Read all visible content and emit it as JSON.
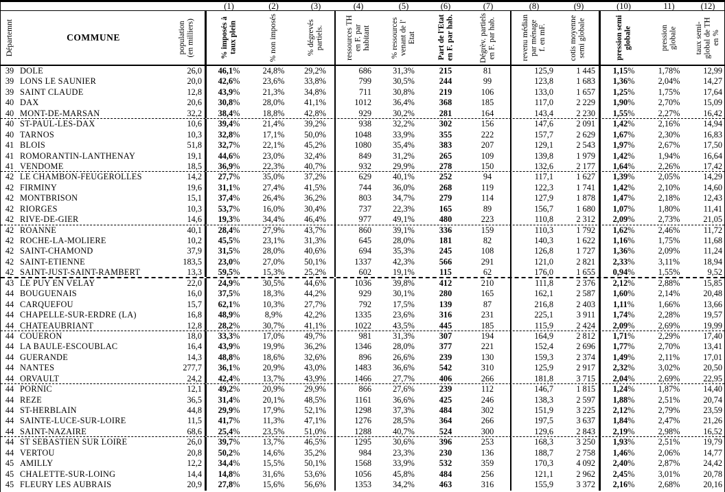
{
  "table": {
    "corner": {
      "dept": "Départemnt",
      "commune": "COMMUNE",
      "pop": "population\n(en milliers)"
    },
    "columns": [
      {
        "num": "(1)",
        "label": "% imposés à\ntaux plein",
        "bold": true
      },
      {
        "num": "(2)",
        "label": "% non imposés",
        "bold": false
      },
      {
        "num": "(3)",
        "label": "% dégrevés\npartiels.",
        "bold": false
      },
      {
        "num": "(4)",
        "label": "ressources TH\nen F. par\nhabitant",
        "bold": false
      },
      {
        "num": "(5)",
        "label": "% ressources\nvenant de l'\nEtat",
        "bold": false
      },
      {
        "num": "(6)",
        "label": "Part de l'Etat\nen F. par hab.",
        "bold": true
      },
      {
        "num": "(7)",
        "label": "Dégrèv. partiels\nen F. par hab.",
        "bold": false
      },
      {
        "num": "(8)",
        "label": "revenu médian\npar ménage\nf. en mF.",
        "bold": false
      },
      {
        "num": "(9)",
        "label": "cotis moyenne\nsemi globale",
        "bold": false
      },
      {
        "num": "(10)",
        "label": "pression semi\nglobale",
        "bold": true
      },
      {
        "num": "11)",
        "label": "pression\nglobale",
        "bold": false
      },
      {
        "num": "(12)",
        "label": "taux semi-\nglobal de TH\nen %",
        "bold": false
      }
    ],
    "rows": [
      {
        "dept": "39",
        "commune": "DOLE",
        "pop": "26,0",
        "c1": "46,1%",
        "c2": "24,8%",
        "c3": "29,2%",
        "c4": "686",
        "c5": "31,3%",
        "c6": "215",
        "c7": "81",
        "c8": "125,9",
        "c9": "1 445",
        "c10": "1,15%",
        "c11": "1,78%",
        "c12": "12,99",
        "sep": ""
      },
      {
        "dept": "39",
        "commune": "LONS LE SAUNIER",
        "pop": "20,0",
        "c1": "42,6%",
        "c2": "23,6%",
        "c3": "33,8%",
        "c4": "799",
        "c5": "30,5%",
        "c6": "244",
        "c7": "99",
        "c8": "123,8",
        "c9": "1 683",
        "c10": "1,36%",
        "c11": "2,04%",
        "c12": "14,27",
        "sep": ""
      },
      {
        "dept": "39",
        "commune": "SAINT CLAUDE",
        "pop": "12,8",
        "c1": "43,9%",
        "c2": "21,3%",
        "c3": "34,8%",
        "c4": "711",
        "c5": "30,8%",
        "c6": "219",
        "c7": "106",
        "c8": "133,0",
        "c9": "1 657",
        "c10": "1,25%",
        "c11": "1,75%",
        "c12": "17,64",
        "sep": ""
      },
      {
        "dept": "40",
        "commune": "DAX",
        "pop": "20,6",
        "c1": "30,8%",
        "c2": "28,0%",
        "c3": "41,1%",
        "c4": "1012",
        "c5": "36,4%",
        "c6": "368",
        "c7": "185",
        "c8": "117,0",
        "c9": "2 229",
        "c10": "1,90%",
        "c11": "2,70%",
        "c12": "15,09",
        "sep": ""
      },
      {
        "dept": "40",
        "commune": "MONT-DE-MARSAN",
        "pop": "32,2",
        "c1": "38,4%",
        "c2": "18,8%",
        "c3": "42,8%",
        "c4": "929",
        "c5": "30,2%",
        "c6": "281",
        "c7": "164",
        "c8": "143,4",
        "c9": "2 230",
        "c10": "1,55%",
        "c11": "2,27%",
        "c12": "16,42",
        "sep": "dashed"
      },
      {
        "dept": "40",
        "commune": "ST-PAUL-LES-DAX",
        "pop": "10,6",
        "c1": "39,4%",
        "c2": "21,4%",
        "c3": "39,2%",
        "c4": "938",
        "c5": "32,2%",
        "c6": "302",
        "c7": "156",
        "c8": "147,6",
        "c9": "2 091",
        "c10": "1,42%",
        "c11": "2,16%",
        "c12": "14,94",
        "sep": ""
      },
      {
        "dept": "40",
        "commune": "TARNOS",
        "pop": "10,3",
        "c1": "32,8%",
        "c2": "17,1%",
        "c3": "50,0%",
        "c4": "1048",
        "c5": "33,9%",
        "c6": "355",
        "c7": "222",
        "c8": "157,7",
        "c9": "2 629",
        "c10": "1,67%",
        "c11": "2,30%",
        "c12": "16,83",
        "sep": ""
      },
      {
        "dept": "41",
        "commune": "BLOIS",
        "pop": "51,8",
        "c1": "32,7%",
        "c2": "22,1%",
        "c3": "45,2%",
        "c4": "1080",
        "c5": "35,4%",
        "c6": "383",
        "c7": "207",
        "c8": "129,1",
        "c9": "2 543",
        "c10": "1,97%",
        "c11": "2,67%",
        "c12": "17,50",
        "sep": ""
      },
      {
        "dept": "41",
        "commune": "ROMORANTIN-LANTHENAY",
        "pop": "19,1",
        "c1": "44,6%",
        "c2": "23,0%",
        "c3": "32,4%",
        "c4": "849",
        "c5": "31,2%",
        "c6": "265",
        "c7": "109",
        "c8": "139,8",
        "c9": "1 979",
        "c10": "1,42%",
        "c11": "1,94%",
        "c12": "16,64",
        "sep": ""
      },
      {
        "dept": "41",
        "commune": "VENDOME",
        "pop": "18,5",
        "c1": "36,9%",
        "c2": "22,3%",
        "c3": "40,7%",
        "c4": "932",
        "c5": "29,9%",
        "c6": "278",
        "c7": "150",
        "c8": "132,6",
        "c9": "2 177",
        "c10": "1,64%",
        "c11": "2,26%",
        "c12": "17,42",
        "sep": "dashed"
      },
      {
        "dept": "42",
        "commune": "LE CHAMBON-FEUGEROLLES",
        "pop": "14,2",
        "c1": "27,7%",
        "c2": "35,0%",
        "c3": "37,2%",
        "c4": "629",
        "c5": "40,1%",
        "c6": "252",
        "c7": "94",
        "c8": "117,1",
        "c9": "1 627",
        "c10": "1,39%",
        "c11": "2,05%",
        "c12": "14,29",
        "sep": ""
      },
      {
        "dept": "42",
        "commune": "FIRMINY",
        "pop": "19,6",
        "c1": "31,1%",
        "c2": "27,4%",
        "c3": "41,5%",
        "c4": "744",
        "c5": "36,0%",
        "c6": "268",
        "c7": "119",
        "c8": "122,3",
        "c9": "1 741",
        "c10": "1,42%",
        "c11": "2,10%",
        "c12": "14,60",
        "sep": ""
      },
      {
        "dept": "42",
        "commune": "MONTBRISON",
        "pop": "15,1",
        "c1": "37,4%",
        "c2": "26,4%",
        "c3": "36,2%",
        "c4": "803",
        "c5": "34,7%",
        "c6": "279",
        "c7": "114",
        "c8": "127,9",
        "c9": "1 878",
        "c10": "1,47%",
        "c11": "2,18%",
        "c12": "12,43",
        "sep": ""
      },
      {
        "dept": "42",
        "commune": "RIORGES",
        "pop": "10,3",
        "c1": "53,7%",
        "c2": "16,0%",
        "c3": "30,4%",
        "c4": "737",
        "c5": "22,3%",
        "c6": "165",
        "c7": "89",
        "c8": "156,7",
        "c9": "1 680",
        "c10": "1,07%",
        "c11": "1,80%",
        "c12": "11,41",
        "sep": ""
      },
      {
        "dept": "42",
        "commune": "RIVE-DE-GIER",
        "pop": "14,6",
        "c1": "19,3%",
        "c2": "34,4%",
        "c3": "46,4%",
        "c4": "977",
        "c5": "49,1%",
        "c6": "480",
        "c7": "223",
        "c8": "110,8",
        "c9": "2 312",
        "c10": "2,09%",
        "c11": "2,73%",
        "c12": "21,05",
        "sep": "dashed"
      },
      {
        "dept": "42",
        "commune": "ROANNE",
        "pop": "40,1",
        "c1": "28,4%",
        "c2": "27,9%",
        "c3": "43,7%",
        "c4": "860",
        "c5": "39,1%",
        "c6": "336",
        "c7": "159",
        "c8": "110,3",
        "c9": "1 792",
        "c10": "1,62%",
        "c11": "2,46%",
        "c12": "11,72",
        "sep": ""
      },
      {
        "dept": "42",
        "commune": "ROCHE-LA-MOLIERE",
        "pop": "10,2",
        "c1": "45,5%",
        "c2": "23,1%",
        "c3": "31,3%",
        "c4": "645",
        "c5": "28,0%",
        "c6": "181",
        "c7": "82",
        "c8": "140,3",
        "c9": "1 622",
        "c10": "1,16%",
        "c11": "1,75%",
        "c12": "11,68",
        "sep": ""
      },
      {
        "dept": "42",
        "commune": "SAINT-CHAMOND",
        "pop": "37,9",
        "c1": "31,5%",
        "c2": "28,0%",
        "c3": "40,6%",
        "c4": "694",
        "c5": "35,3%",
        "c6": "245",
        "c7": "108",
        "c8": "126,8",
        "c9": "1 727",
        "c10": "1,36%",
        "c11": "2,09%",
        "c12": "11,24",
        "sep": ""
      },
      {
        "dept": "42",
        "commune": "SAINT-ETIENNE",
        "pop": "183,5",
        "c1": "23,0%",
        "c2": "27,0%",
        "c3": "50,1%",
        "c4": "1337",
        "c5": "42,3%",
        "c6": "566",
        "c7": "291",
        "c8": "121,0",
        "c9": "2 821",
        "c10": "2,33%",
        "c11": "3,11%",
        "c12": "18,94",
        "sep": ""
      },
      {
        "dept": "42",
        "commune": "SAINT-JUST-SAINT-RAMBERT",
        "pop": "13,3",
        "c1": "59,5%",
        "c2": "15,3%",
        "c3": "25,2%",
        "c4": "602",
        "c5": "19,1%",
        "c6": "115",
        "c7": "62",
        "c8": "176,0",
        "c9": "1 655",
        "c10": "0,94%",
        "c11": "1,55%",
        "c12": "9,52",
        "sep": "dashed-bold"
      },
      {
        "dept": "43",
        "commune": "LE PUY EN VELAY",
        "pop": "22,0",
        "c1": "24,9%",
        "c2": "30,5%",
        "c3": "44,6%",
        "c4": "1036",
        "c5": "39,8%",
        "c6": "412",
        "c7": "210",
        "c8": "111,8",
        "c9": "2 376",
        "c10": "2,12%",
        "c11": "2,88%",
        "c12": "15,85",
        "sep": ""
      },
      {
        "dept": "44",
        "commune": "BOUGUENAIS",
        "pop": "16,0",
        "c1": "37,5%",
        "c2": "18,3%",
        "c3": "44,2%",
        "c4": "929",
        "c5": "30,1%",
        "c6": "280",
        "c7": "165",
        "c8": "162,1",
        "c9": "2 587",
        "c10": "1,60%",
        "c11": "2,14%",
        "c12": "20,48",
        "sep": ""
      },
      {
        "dept": "44",
        "commune": "CARQUEFOU",
        "pop": "15,7",
        "c1": "62,1%",
        "c2": "10,3%",
        "c3": "27,7%",
        "c4": "792",
        "c5": "17,5%",
        "c6": "139",
        "c7": "87",
        "c8": "216,8",
        "c9": "2 403",
        "c10": "1,11%",
        "c11": "1,66%",
        "c12": "13,66",
        "sep": ""
      },
      {
        "dept": "44",
        "commune": "CHAPELLE-SUR-ERDRE (LA)",
        "pop": "16,8",
        "c1": "48,9%",
        "c2": "8,9%",
        "c3": "42,2%",
        "c4": "1335",
        "c5": "23,6%",
        "c6": "316",
        "c7": "231",
        "c8": "225,1",
        "c9": "3 911",
        "c10": "1,74%",
        "c11": "2,28%",
        "c12": "19,57",
        "sep": ""
      },
      {
        "dept": "44",
        "commune": "CHATEAUBRIANT",
        "pop": "12,8",
        "c1": "28,2%",
        "c2": "30,7%",
        "c3": "41,1%",
        "c4": "1022",
        "c5": "43,5%",
        "c6": "445",
        "c7": "185",
        "c8": "115,9",
        "c9": "2 424",
        "c10": "2,09%",
        "c11": "2,69%",
        "c12": "19,99",
        "sep": "dashed"
      },
      {
        "dept": "44",
        "commune": "COUERON",
        "pop": "18,0",
        "c1": "33,3%",
        "c2": "17,0%",
        "c3": "49,7%",
        "c4": "981",
        "c5": "31,3%",
        "c6": "307",
        "c7": "194",
        "c8": "164,9",
        "c9": "2 812",
        "c10": "1,71%",
        "c11": "2,29%",
        "c12": "17,40",
        "sep": ""
      },
      {
        "dept": "44",
        "commune": "LA BAULE-ESCOUBLAC",
        "pop": "16,4",
        "c1": "43,9%",
        "c2": "19,9%",
        "c3": "36,2%",
        "c4": "1346",
        "c5": "28,0%",
        "c6": "377",
        "c7": "221",
        "c8": "152,4",
        "c9": "2 696",
        "c10": "1,77%",
        "c11": "2,70%",
        "c12": "13,41",
        "sep": ""
      },
      {
        "dept": "44",
        "commune": "GUERANDE",
        "pop": "14,3",
        "c1": "48,8%",
        "c2": "18,6%",
        "c3": "32,6%",
        "c4": "896",
        "c5": "26,6%",
        "c6": "239",
        "c7": "130",
        "c8": "159,3",
        "c9": "2 374",
        "c10": "1,49%",
        "c11": "2,11%",
        "c12": "17,01",
        "sep": ""
      },
      {
        "dept": "44",
        "commune": "NANTES",
        "pop": "277,7",
        "c1": "36,1%",
        "c2": "20,9%",
        "c3": "43,0%",
        "c4": "1483",
        "c5": "36,6%",
        "c6": "542",
        "c7": "310",
        "c8": "125,9",
        "c9": "2 917",
        "c10": "2,32%",
        "c11": "3,02%",
        "c12": "20,50",
        "sep": ""
      },
      {
        "dept": "44",
        "commune": "ORVAULT",
        "pop": "24,2",
        "c1": "42,4%",
        "c2": "13,7%",
        "c3": "43,9%",
        "c4": "1466",
        "c5": "27,7%",
        "c6": "406",
        "c7": "266",
        "c8": "181,8",
        "c9": "3 715",
        "c10": "2,04%",
        "c11": "2,69%",
        "c12": "22,95",
        "sep": "dashed"
      },
      {
        "dept": "44",
        "commune": "PORNIC",
        "pop": "12,1",
        "c1": "49,2%",
        "c2": "20,9%",
        "c3": "29,9%",
        "c4": "866",
        "c5": "27,6%",
        "c6": "239",
        "c7": "112",
        "c8": "146,7",
        "c9": "1 815",
        "c10": "1,24%",
        "c11": "1,87%",
        "c12": "14,40",
        "sep": ""
      },
      {
        "dept": "44",
        "commune": "REZE",
        "pop": "36,5",
        "c1": "31,4%",
        "c2": "20,1%",
        "c3": "48,5%",
        "c4": "1161",
        "c5": "36,6%",
        "c6": "425",
        "c7": "246",
        "c8": "138,3",
        "c9": "2 597",
        "c10": "1,88%",
        "c11": "2,51%",
        "c12": "20,74",
        "sep": ""
      },
      {
        "dept": "44",
        "commune": "ST-HERBLAIN",
        "pop": "44,8",
        "c1": "29,9%",
        "c2": "17,9%",
        "c3": "52,1%",
        "c4": "1298",
        "c5": "37,3%",
        "c6": "484",
        "c7": "302",
        "c8": "151,9",
        "c9": "3 225",
        "c10": "2,12%",
        "c11": "2,79%",
        "c12": "23,59",
        "sep": ""
      },
      {
        "dept": "44",
        "commune": "SAINTE-LUCE-SUR-LOIRE",
        "pop": "11,5",
        "c1": "41,7%",
        "c2": "11,3%",
        "c3": "47,1%",
        "c4": "1276",
        "c5": "28,5%",
        "c6": "364",
        "c7": "266",
        "c8": "197,5",
        "c9": "3 637",
        "c10": "1,84%",
        "c11": "2,47%",
        "c12": "21,26",
        "sep": ""
      },
      {
        "dept": "44",
        "commune": "SAINT-NAZAIRE",
        "pop": "68,6",
        "c1": "25,4%",
        "c2": "23,5%",
        "c3": "51,0%",
        "c4": "1288",
        "c5": "40,7%",
        "c6": "524",
        "c7": "300",
        "c8": "129,6",
        "c9": "2 843",
        "c10": "2,19%",
        "c11": "2,98%",
        "c12": "16,52",
        "sep": "dashed"
      },
      {
        "dept": "44",
        "commune": "ST SEBASTIEN SUR LOIRE",
        "pop": "26,0",
        "c1": "39,7%",
        "c2": "13,7%",
        "c3": "46,5%",
        "c4": "1295",
        "c5": "30,6%",
        "c6": "396",
        "c7": "253",
        "c8": "168,3",
        "c9": "3 250",
        "c10": "1,93%",
        "c11": "2,51%",
        "c12": "19,79",
        "sep": ""
      },
      {
        "dept": "44",
        "commune": "VERTOU",
        "pop": "20,8",
        "c1": "50,2%",
        "c2": "14,6%",
        "c3": "35,2%",
        "c4": "984",
        "c5": "23,3%",
        "c6": "230",
        "c7": "136",
        "c8": "188,7",
        "c9": "2 758",
        "c10": "1,46%",
        "c11": "2,06%",
        "c12": "14,77",
        "sep": ""
      },
      {
        "dept": "45",
        "commune": "AMILLY",
        "pop": "12,2",
        "c1": "34,4%",
        "c2": "15,5%",
        "c3": "50,1%",
        "c4": "1568",
        "c5": "33,9%",
        "c6": "532",
        "c7": "359",
        "c8": "170,3",
        "c9": "4 092",
        "c10": "2,40%",
        "c11": "2,87%",
        "c12": "24,42",
        "sep": ""
      },
      {
        "dept": "45",
        "commune": "CHALETTE-SUR-LOING",
        "pop": "14,4",
        "c1": "14,8%",
        "c2": "31,6%",
        "c3": "53,6%",
        "c4": "1056",
        "c5": "45,8%",
        "c6": "484",
        "c7": "256",
        "c8": "121,1",
        "c9": "2 962",
        "c10": "2,45%",
        "c11": "3,01%",
        "c12": "20,78",
        "sep": ""
      },
      {
        "dept": "45",
        "commune": "FLEURY LES AUBRAIS",
        "pop": "20,9",
        "c1": "27,8%",
        "c2": "15,6%",
        "c3": "56,6%",
        "c4": "1353",
        "c5": "34,2%",
        "c6": "463",
        "c7": "316",
        "c8": "155,9",
        "c9": "3 372",
        "c10": "2,16%",
        "c11": "2,68%",
        "c12": "20,16",
        "sep": ""
      }
    ]
  }
}
